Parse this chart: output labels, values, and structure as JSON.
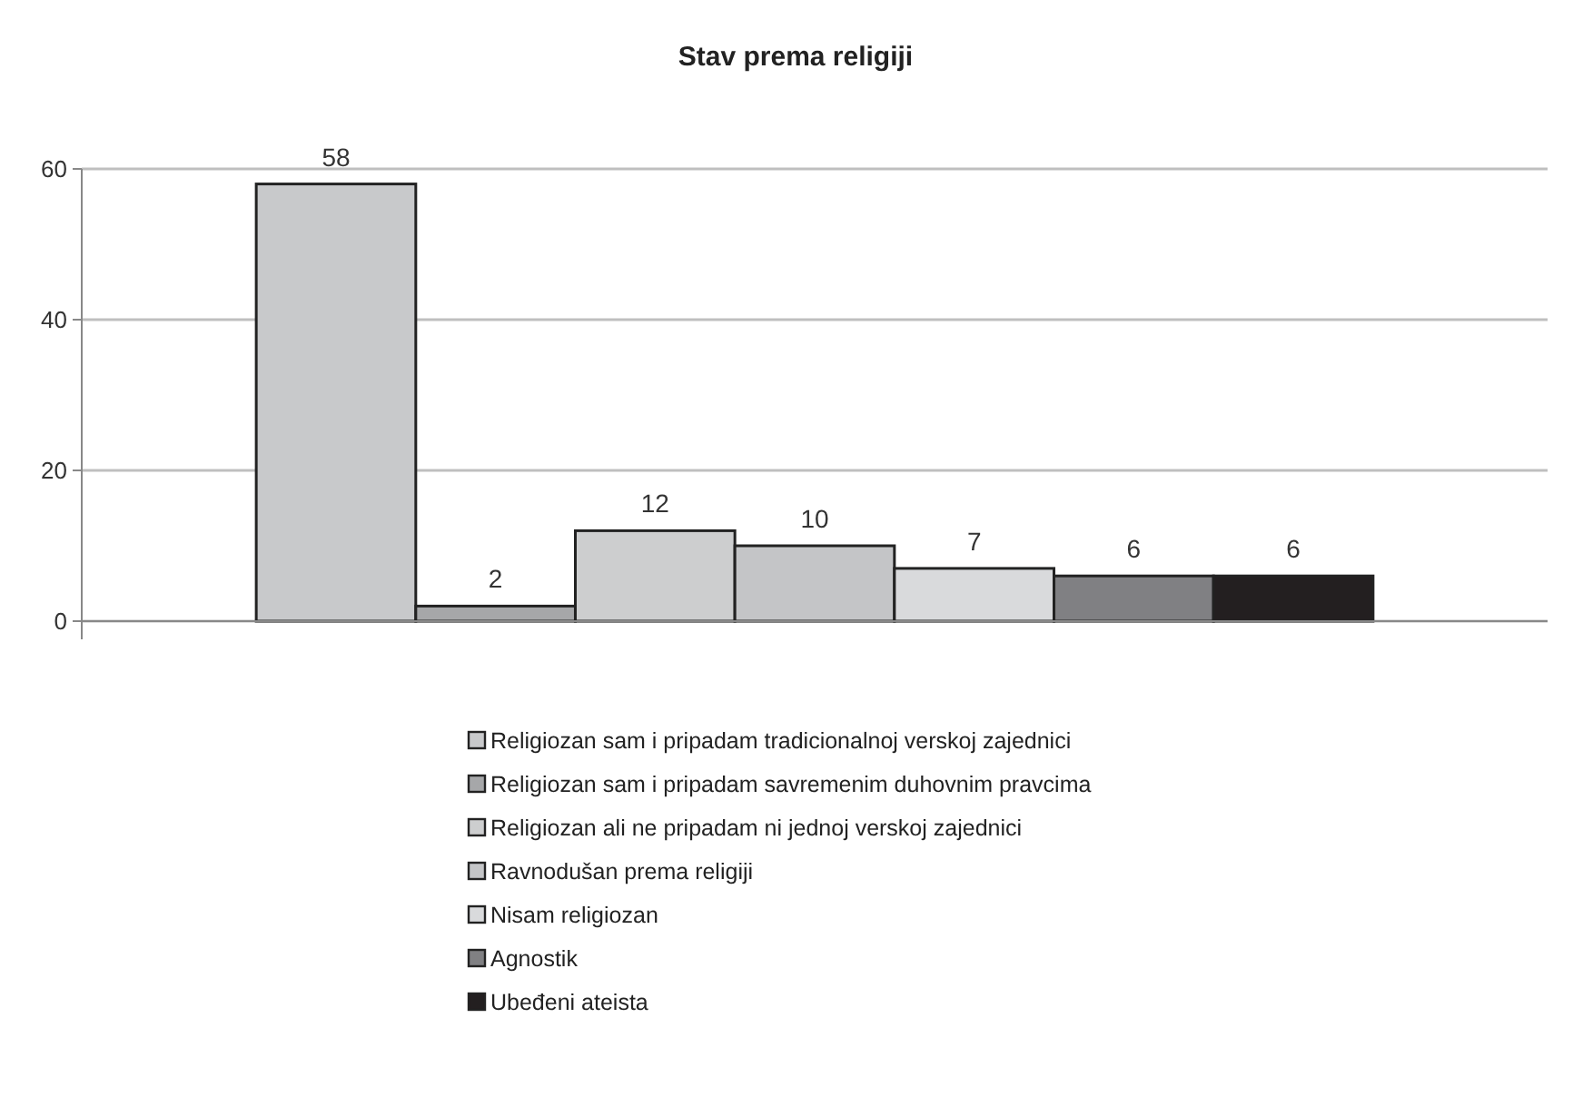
{
  "chart_data": {
    "type": "bar",
    "title": "Stav prema religiji",
    "categories": [
      null
    ],
    "series": [
      {
        "name": "Religiozan sam i pripadam tradicionalnoj verskoj zajednici",
        "color": "#c8c9cb",
        "values": [
          58
        ]
      },
      {
        "name": "Religiozan sam i pripadam savremenim duhovnim pravcima",
        "color": "#a6a7a9",
        "values": [
          2
        ]
      },
      {
        "name": "Religiozan ali ne pripadam ni jednoj verskoj zajednici",
        "color": "#cdcecf",
        "values": [
          12
        ]
      },
      {
        "name": "Ravnodušan prema religiji",
        "color": "#c4c5c7",
        "values": [
          10
        ]
      },
      {
        "name": "Nisam religiozan",
        "color": "#d9dadc",
        "values": [
          7
        ]
      },
      {
        "name": "Agnostik",
        "color": "#808083",
        "values": [
          6
        ]
      },
      {
        "name": "Ubeđeni ateista",
        "color": "#231f20",
        "values": [
          6
        ]
      }
    ],
    "ylim": [
      0,
      60
    ],
    "yticks": [
      0,
      20,
      40,
      60
    ],
    "grid": "y",
    "data_labels": true,
    "legend": "bottom"
  }
}
